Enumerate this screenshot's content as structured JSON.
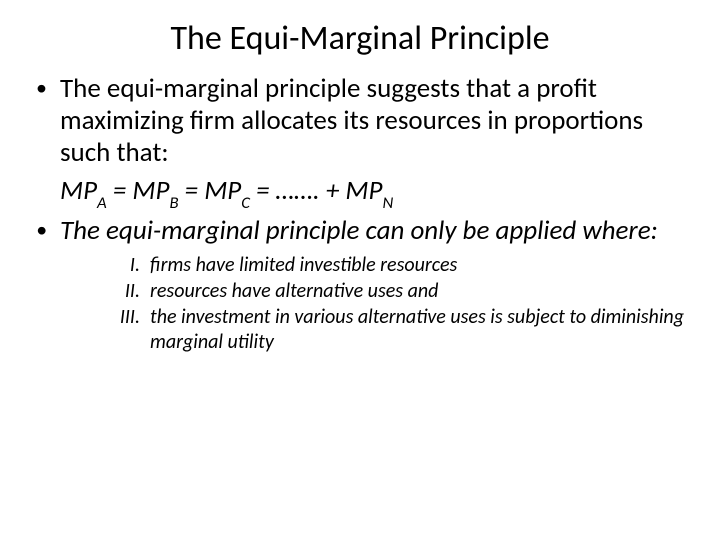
{
  "title": "The Equi-Marginal Principle",
  "bullet1": "The equi-marginal principle suggests that  a profit maximizing  firm allocates its resources in proportions such that:",
  "formula": {
    "t1": "MP",
    "s1": "A",
    "eq1": " = ",
    "t2": "MP",
    "s2": "B",
    "eq2": " = ",
    "t3": "MP",
    "s3": "C",
    "eq3": " = ……. + ",
    "t4": "MP",
    "s4": "N"
  },
  "bullet2": "The equi-marginal principle can only be applied where:",
  "roman": {
    "n1": "I.",
    "i1": "firms have limited investible resources",
    "n2": "II.",
    "i2": "resources have alternative uses and",
    "n3": "III.",
    "i3": " the investment in various alternative uses is subject to diminishing marginal utility"
  }
}
